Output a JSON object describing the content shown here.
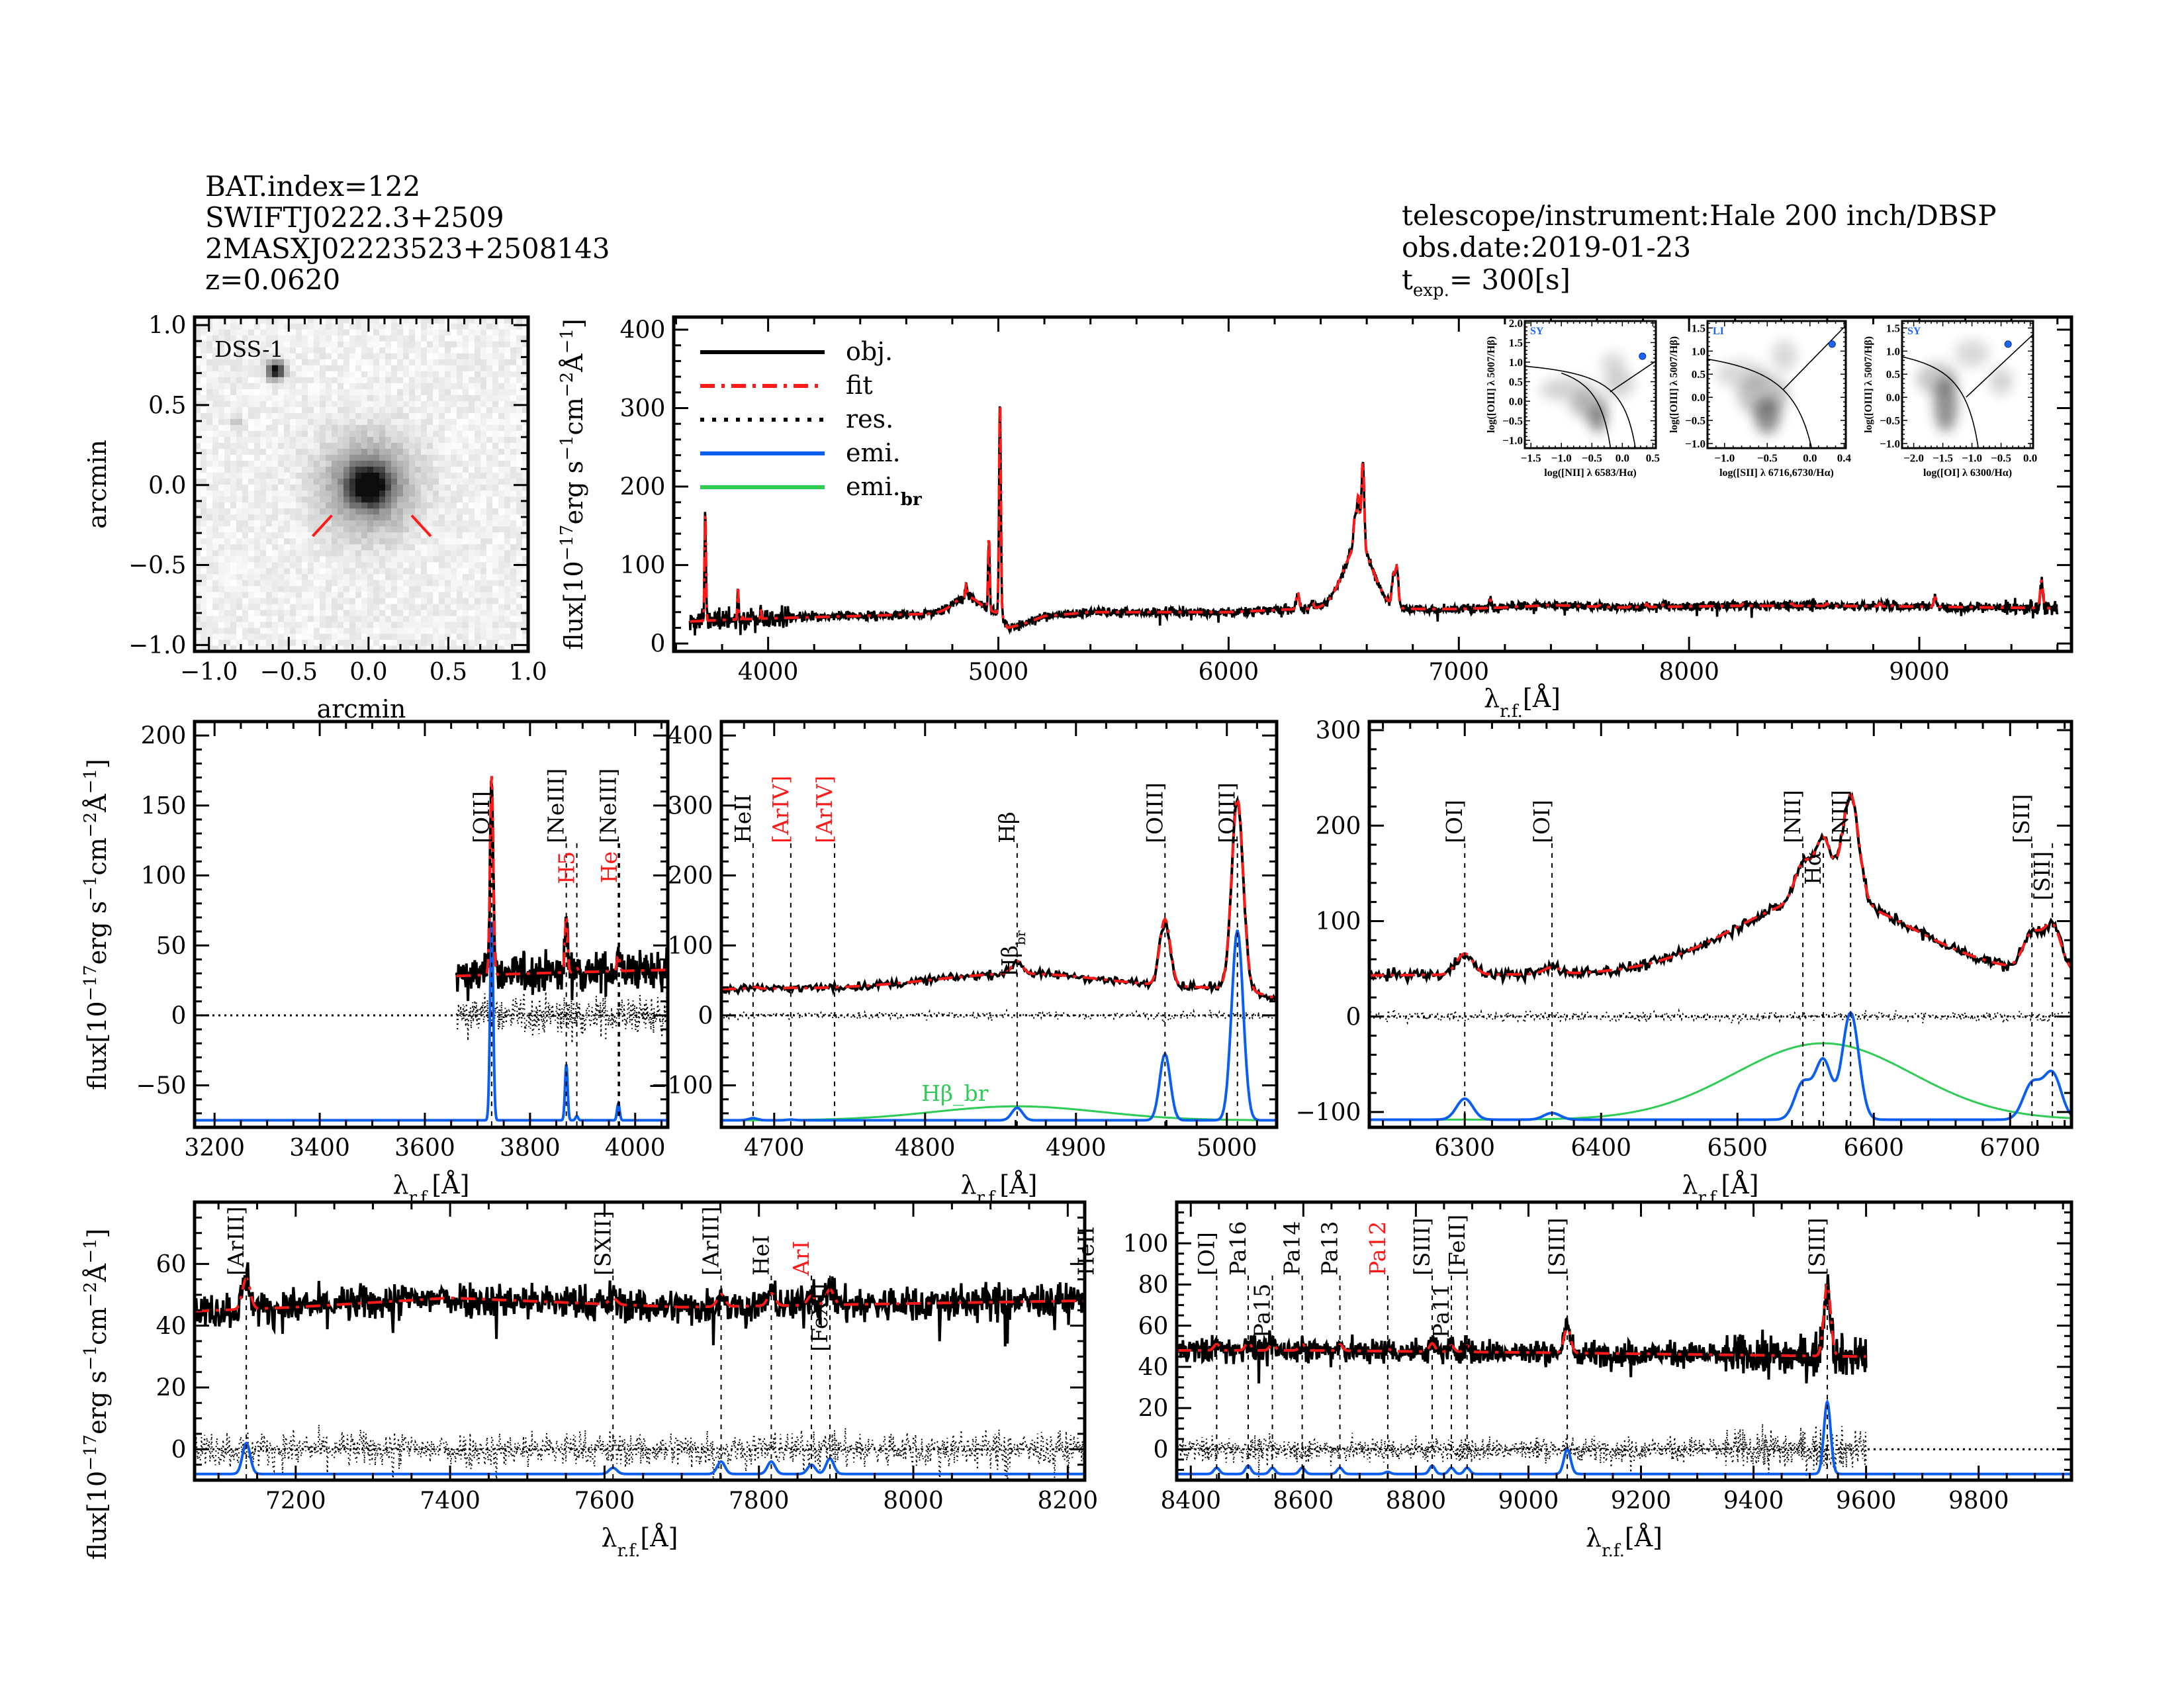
{
  "header": {
    "bat_index": "BAT.index=122",
    "swift_name": "SWIFTJ0222.3+2509",
    "twomass_name": "2MASXJ02223523+2508143",
    "redshift": "z=0.0620",
    "telescope": "telescope/instrument:Hale 200 inch/DBSP",
    "obs_date": "obs.date:2019-01-23",
    "t_exp_t": "t",
    "t_exp_sub": "exp.",
    "t_exp_value": "=  300[s]"
  },
  "colors": {
    "obj": "#000000",
    "fit": "#ff1a1a",
    "res": "#000000",
    "emi": "#0a5ef0",
    "emi_br": "#2ecc55",
    "class_label": "#1a66ff",
    "marker_red": "#ff1a1a"
  },
  "axis_labels": {
    "flux": [
      {
        "t": "flux[10"
      },
      {
        "t": "−17",
        "sup": true
      },
      {
        "t": "erg s"
      },
      {
        "t": "−1",
        "sup": true
      },
      {
        "t": "cm"
      },
      {
        "t": "−2",
        "sup": true
      },
      {
        "t": "Å"
      },
      {
        "t": "−1",
        "sup": true
      },
      {
        "t": "]"
      }
    ],
    "wavelength": [
      {
        "t": "λ"
      },
      {
        "t": "r.f.",
        "sub": true
      },
      {
        "t": "[Å]"
      }
    ],
    "arcmin": "arcmin"
  },
  "legend": [
    {
      "label": "obj.",
      "sub": "",
      "style": "solid",
      "color": "#000000"
    },
    {
      "label": "fit",
      "sub": "",
      "style": "dashdot",
      "color": "#ff1a1a"
    },
    {
      "label": "res.",
      "sub": "",
      "style": "dotted",
      "color": "#000000"
    },
    {
      "label": "emi.",
      "sub": "",
      "style": "solid",
      "color": "#0a5ef0"
    },
    {
      "label": "emi.",
      "sub": "br",
      "style": "solid",
      "color": "#2ecc55"
    }
  ],
  "spectrum_model": {
    "continuum": [
      [
        3650,
        28
      ],
      [
        3800,
        30
      ],
      [
        4000,
        32
      ],
      [
        4500,
        36
      ],
      [
        4900,
        40
      ],
      [
        5010,
        38
      ],
      [
        5040,
        20
      ],
      [
        5100,
        24
      ],
      [
        5200,
        35
      ],
      [
        5400,
        40
      ],
      [
        6000,
        40
      ],
      [
        6300,
        44
      ],
      [
        6700,
        44
      ],
      [
        7000,
        44
      ],
      [
        7200,
        46
      ],
      [
        7400,
        49
      ],
      [
        7700,
        46
      ],
      [
        8200,
        48
      ],
      [
        8600,
        48
      ],
      [
        9000,
        47
      ],
      [
        9300,
        46
      ],
      [
        9600,
        45
      ]
    ],
    "narrow_lines": [
      {
        "name": "[OII]",
        "wavelength": 3727,
        "peak": 142,
        "sigma": 3
      },
      {
        "name": "[NeIII]",
        "wavelength": 3869,
        "peak": 40,
        "sigma": 2.5
      },
      {
        "name": "H5",
        "wavelength": 3889,
        "peak": 3,
        "sigma": 2.5
      },
      {
        "name": "[NeIII]",
        "wavelength": 3968,
        "peak": 12,
        "sigma": 2.5
      },
      {
        "name": "HeII",
        "wavelength": 4686,
        "peak": 3,
        "sigma": 3
      },
      {
        "name": "[ArIV]",
        "wavelength": 4711,
        "peak": 1,
        "sigma": 3
      },
      {
        "name": "Hβ",
        "wavelength": 4861,
        "peak": 18,
        "sigma": 3.5
      },
      {
        "name": "[OIII]",
        "wavelength": 4959,
        "peak": 95,
        "sigma": 3.5
      },
      {
        "name": "[OIII]",
        "wavelength": 5007,
        "peak": 272,
        "sigma": 3.8
      },
      {
        "name": "[OI]",
        "wavelength": 6300,
        "peak": 22,
        "sigma": 6
      },
      {
        "name": "[OI]",
        "wavelength": 6364,
        "peak": 7,
        "sigma": 6
      },
      {
        "name": "[NII]",
        "wavelength": 6548,
        "peak": 38,
        "sigma": 6
      },
      {
        "name": "Hα",
        "wavelength": 6563,
        "peak": 62,
        "sigma": 6
      },
      {
        "name": "[NII]",
        "wavelength": 6583,
        "peak": 112,
        "sigma": 6
      },
      {
        "name": "[SII]",
        "wavelength": 6716,
        "peak": 37,
        "sigma": 6.5
      },
      {
        "name": "[SII]",
        "wavelength": 6731,
        "peak": 48,
        "sigma": 6.5
      },
      {
        "name": "[ArIII]",
        "wavelength": 7136,
        "peak": 10,
        "sigma": 5
      },
      {
        "name": "[SXII]",
        "wavelength": 7611,
        "peak": 2,
        "sigma": 5
      },
      {
        "name": "[ArIII]",
        "wavelength": 7751,
        "peak": 4,
        "sigma": 5
      },
      {
        "name": "HeI",
        "wavelength": 7816,
        "peak": 4,
        "sigma": 5
      },
      {
        "name": "ArI",
        "wavelength": 7868,
        "peak": 3,
        "sigma": 5
      },
      {
        "name": "[FeXI]",
        "wavelength": 7892,
        "peak": 5,
        "sigma": 5
      },
      {
        "name": "HeII",
        "wavelength": 8237,
        "peak": 3,
        "sigma": 5
      },
      {
        "name": "OI",
        "wavelength": 8446,
        "peak": 3,
        "sigma": 5
      },
      {
        "name": "Pa16",
        "wavelength": 8502,
        "peak": 4,
        "sigma": 5
      },
      {
        "name": "Pa15",
        "wavelength": 8545,
        "peak": 3,
        "sigma": 5
      },
      {
        "name": "Pa14",
        "wavelength": 8598,
        "peak": 3,
        "sigma": 5
      },
      {
        "name": "Pa13",
        "wavelength": 8665,
        "peak": 3,
        "sigma": 5
      },
      {
        "name": "Pa12",
        "wavelength": 8750,
        "peak": 1,
        "sigma": 5
      },
      {
        "name": "[SIII]",
        "wavelength": 8829,
        "peak": 4,
        "sigma": 5
      },
      {
        "name": "Pa11",
        "wavelength": 8863,
        "peak": 3,
        "sigma": 5
      },
      {
        "name": "[FeII]",
        "wavelength": 8891,
        "peak": 3,
        "sigma": 5
      },
      {
        "name": "[SIII]",
        "wavelength": 9069,
        "peak": 12,
        "sigma": 6
      },
      {
        "name": "[SIII]",
        "wavelength": 9531,
        "peak": 35,
        "sigma": 6
      }
    ],
    "broad_lines": [
      {
        "name": "Hβ_br",
        "wavelength": 4861,
        "peak": 20,
        "sigma": 55
      },
      {
        "name": "Hα_br",
        "wavelength": 6563,
        "peak": 80,
        "sigma": 65
      }
    ]
  },
  "chart_data": [
    {
      "type": "image",
      "title": "DSS-1",
      "xlabel": "arcmin",
      "ylabel": "arcmin",
      "xlim": [
        -1.09,
        1.0
      ],
      "ylim": [
        -1.04,
        1.05
      ],
      "xticks": [
        "−1.0",
        "−0.5",
        "0.0",
        "0.5",
        "1.0"
      ],
      "yticks": [
        "−1.0",
        "−0.5",
        "0.0",
        "0.5",
        "1.0"
      ],
      "sources": [
        {
          "kind": "galaxy",
          "x": 0.0,
          "y": 0.0
        },
        {
          "kind": "star",
          "x": -0.58,
          "y": 0.72
        }
      ]
    },
    {
      "type": "line",
      "panel": "full-spectrum",
      "xlim": [
        3590,
        9661
      ],
      "ylim": [
        -10,
        416
      ],
      "wl_range": [
        3660,
        9600
      ],
      "xticks": [
        "4000",
        "5000",
        "6000",
        "7000",
        "8000",
        "9000"
      ],
      "yticks": [
        "0",
        "100",
        "200",
        "300",
        "400"
      ],
      "legend": "top-left",
      "series": [
        "obj.",
        "fit"
      ]
    },
    {
      "type": "scatter",
      "panel": "bpt-nii",
      "class": "SY",
      "xlabel": "log([NII] λ 6583/Hα)",
      "ylabel": "log([OIII] λ 5007/Hβ)",
      "xlim": [
        -1.6,
        0.55
      ],
      "ylim": [
        -1.2,
        2.05
      ],
      "xticks": [
        "−1.5",
        "−1.0",
        "−0.5",
        "0.0",
        "0.5"
      ],
      "yticks": [
        "−1.0",
        "−0.5",
        "0.0",
        "0.5",
        "1.0",
        "1.5",
        "2.0"
      ],
      "point": [
        0.33,
        1.15
      ]
    },
    {
      "type": "scatter",
      "panel": "bpt-sii",
      "class": "LI",
      "xlabel": "log([SII] λ 6716,6730/Hα)",
      "ylabel": "log([OIII] λ 5007/Hβ)",
      "xlim": [
        -1.2,
        0.42
      ],
      "ylim": [
        -1.1,
        1.65
      ],
      "xticks": [
        "−1.0",
        "−0.5",
        "0.0",
        "0.4"
      ],
      "yticks": [
        "−1.0",
        "−0.5",
        "0.0",
        "0.5",
        "1.0",
        "1.5"
      ],
      "point": [
        0.26,
        1.15
      ]
    },
    {
      "type": "scatter",
      "panel": "bpt-oi",
      "class": "SY",
      "xlabel": "log([OI] λ 6300/Hα)",
      "ylabel": "log([OIII] λ 5007/Hβ)",
      "xlim": [
        -2.2,
        0.05
      ],
      "ylim": [
        -1.1,
        1.65
      ],
      "xticks": [
        "−2.0",
        "−1.5",
        "−1.0",
        "−0.5",
        "0.0"
      ],
      "yticks": [
        "−1.0",
        "−0.5",
        "0.0",
        "0.5",
        "1.0",
        "1.5"
      ],
      "point": [
        -0.38,
        1.15
      ]
    },
    {
      "type": "line",
      "panel": "zoom-oii-neiii",
      "xlim": [
        3162,
        4062
      ],
      "ylim": [
        -80,
        210
      ],
      "wl_range": [
        3660,
        4062
      ],
      "emi_offset": -75,
      "xticks": [
        "3200",
        "3400",
        "3600",
        "3800",
        "4000"
      ],
      "yticks": [
        "−50",
        "0",
        "50",
        "100",
        "150",
        "200"
      ],
      "markers": [
        {
          "label": "[OII]",
          "wavelength": 3727,
          "color": "#000000"
        },
        {
          "label": "[NeIII]",
          "wavelength": 3869,
          "color": "#000000"
        },
        {
          "label": "H5",
          "wavelength": 3889,
          "color": "#ff1a1a"
        },
        {
          "label": "[NeIII]",
          "wavelength": 3968,
          "color": "#000000"
        },
        {
          "label": "He",
          "wavelength": 3970,
          "color": "#ff1a1a"
        }
      ]
    },
    {
      "type": "line",
      "panel": "zoom-hbeta-oiii",
      "xlim": [
        4665,
        5033
      ],
      "ylim": [
        -160,
        420
      ],
      "wl_range": [
        4665,
        5033
      ],
      "emi_offset": -150,
      "xticks": [
        "4700",
        "4800",
        "4900",
        "5000"
      ],
      "yticks": [
        "−100",
        "0",
        "100",
        "200",
        "300",
        "400"
      ],
      "markers": [
        {
          "label": "HeII",
          "wavelength": 4686,
          "color": "#000000"
        },
        {
          "label": "[ArIV]",
          "wavelength": 4711,
          "color": "#ff1a1a"
        },
        {
          "label": "[ArIV]",
          "wavelength": 4740,
          "color": "#ff1a1a"
        },
        {
          "label": "Hβ",
          "wavelength": 4861,
          "color": "#000000"
        },
        {
          "label": "[OIII]",
          "wavelength": 4959,
          "color": "#000000"
        },
        {
          "label": "[OIII]",
          "wavelength": 5007,
          "color": "#000000"
        }
      ],
      "broad_label": "Hβ",
      "broad_label_sub": "br"
    },
    {
      "type": "line",
      "panel": "zoom-halpha",
      "xlim": [
        6230,
        6745
      ],
      "ylim": [
        -116,
        309
      ],
      "wl_range": [
        6230,
        6745
      ],
      "emi_offset": -108,
      "xticks": [
        "6300",
        "6400",
        "6500",
        "6600",
        "6700"
      ],
      "yticks": [
        "−100",
        "0",
        "100",
        "200",
        "300"
      ],
      "markers": [
        {
          "label": "[OI]",
          "wavelength": 6300,
          "color": "#000000"
        },
        {
          "label": "[OI]",
          "wavelength": 6364,
          "color": "#000000"
        },
        {
          "label": "[NII]",
          "wavelength": 6548,
          "color": "#000000"
        },
        {
          "label": "Hα",
          "wavelength": 6563,
          "color": "#000000"
        },
        {
          "label": "[NII]",
          "wavelength": 6583,
          "color": "#000000"
        },
        {
          "label": "[SII]",
          "wavelength": 6716,
          "color": "#000000"
        },
        {
          "label": "[SII]",
          "wavelength": 6731,
          "color": "#000000"
        }
      ]
    },
    {
      "type": "line",
      "panel": "zoom-7100-8200",
      "xlim": [
        7069,
        8222
      ],
      "ylim": [
        -10,
        80
      ],
      "wl_range": [
        7069,
        8222
      ],
      "emi_offset": -8,
      "xticks": [
        "7200",
        "7400",
        "7600",
        "7800",
        "8000",
        "8200"
      ],
      "yticks": [
        "0",
        "20",
        "40",
        "60"
      ],
      "markers": [
        {
          "label": "[ArIII]",
          "wavelength": 7136,
          "color": "#000000"
        },
        {
          "label": "[SXII]",
          "wavelength": 7611,
          "color": "#000000"
        },
        {
          "label": "[ArIII]",
          "wavelength": 7751,
          "color": "#000000"
        },
        {
          "label": "HeI",
          "wavelength": 7816,
          "color": "#000000"
        },
        {
          "label": "ArI",
          "wavelength": 7868,
          "color": "#ff1a1a"
        },
        {
          "label": "[FeXI]",
          "wavelength": 7892,
          "color": "#000000"
        },
        {
          "label": "HeII",
          "wavelength": 8237,
          "color": "#000000"
        }
      ]
    },
    {
      "type": "line",
      "panel": "zoom-8400-9800",
      "xlim": [
        8375,
        9965
      ],
      "ylim": [
        -15,
        120
      ],
      "wl_range": [
        8375,
        9600
      ],
      "emi_offset": -12,
      "xticks": [
        "8400",
        "8600",
        "8800",
        "9000",
        "9200",
        "9400",
        "9600",
        "9800"
      ],
      "yticks": [
        "0",
        "20",
        "40",
        "60",
        "80",
        "100"
      ],
      "markers": [
        {
          "label": "[OI]",
          "wavelength": 8446,
          "color": "#000000"
        },
        {
          "label": "Pa16",
          "wavelength": 8502,
          "color": "#000000"
        },
        {
          "label": "Pa15",
          "wavelength": 8545,
          "color": "#000000"
        },
        {
          "label": "Pa14",
          "wavelength": 8598,
          "color": "#000000"
        },
        {
          "label": "Pa13",
          "wavelength": 8665,
          "color": "#000000"
        },
        {
          "label": "Pa12",
          "wavelength": 8750,
          "color": "#ff1a1a"
        },
        {
          "label": "[SIII]",
          "wavelength": 8829,
          "color": "#000000"
        },
        {
          "label": "Pa11",
          "wavelength": 8863,
          "color": "#000000"
        },
        {
          "label": "[FeII]",
          "wavelength": 8891,
          "color": "#000000"
        },
        {
          "label": "[SIII]",
          "wavelength": 9069,
          "color": "#000000"
        },
        {
          "label": "[SIII]",
          "wavelength": 9531,
          "color": "#000000"
        }
      ]
    }
  ]
}
